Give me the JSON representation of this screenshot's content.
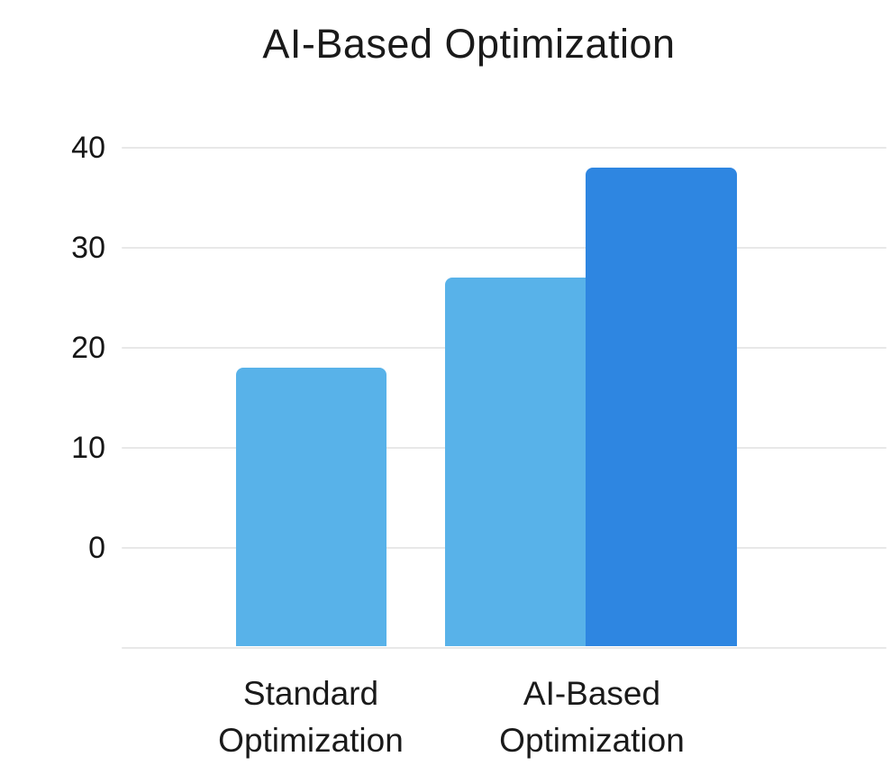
{
  "chart_data": {
    "type": "bar",
    "title": "AI-Based Optimization",
    "categories": [
      "Standard Optimization",
      "AI-Based Optimization"
    ],
    "series": [
      {
        "color": "#58B2E9",
        "values": [
          18,
          27
        ]
      },
      {
        "color": "#2E86E1",
        "values": [
          null,
          38
        ]
      }
    ],
    "y_ticks": [
      40,
      30,
      20,
      10,
      0
    ],
    "ylim": [
      -10,
      40
    ],
    "xlabel": "",
    "ylabel": "",
    "grid": true,
    "legend": false,
    "bar_style": "overlapping, rounded top corners",
    "colors": {
      "bar_light": "#58B2E9",
      "bar_dark": "#2E86E1",
      "gridline": "#E8E8E8",
      "text": "#1A1A1A",
      "background": "#FFFFFF"
    }
  }
}
